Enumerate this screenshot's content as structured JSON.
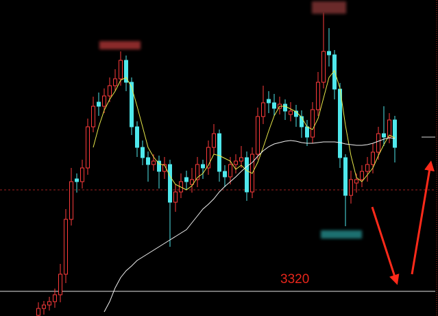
{
  "chart_data": {
    "type": "candlestick",
    "ylim": [
      3302,
      3532.5
    ],
    "open": [
      3302.5,
      3307.5,
      3310,
      3312.5,
      3317.5,
      3332.5,
      3372.5,
      3402,
      3400,
      3410,
      3440,
      3458,
      3455,
      3462.5,
      3470,
      3475,
      3488.5,
      3472.5,
      3440,
      3425,
      3417.5,
      3412.5,
      3415,
      3407.5,
      3412.5,
      3385,
      3392.5,
      3403,
      3398,
      3401.5,
      3412.5,
      3410,
      3425,
      3435,
      3407.5,
      3403.5,
      3412.5,
      3415,
      3417.5,
      3392.5,
      3420,
      3447.5,
      3460,
      3457.5,
      3453.5,
      3456.5,
      3449,
      3451.5,
      3447.5,
      3440,
      3432.5,
      3452.5,
      3472.5,
      3495,
      3492.5,
      3467.5,
      3417.5,
      3390,
      3399,
      3401.5,
      3407.5,
      3412.5,
      3421.5,
      3435,
      3432.5,
      3445
    ],
    "high": [
      3312,
      3313,
      3316,
      3322,
      3340,
      3380,
      3410,
      3406,
      3416,
      3446,
      3462,
      3465,
      3468,
      3476,
      3482,
      3495,
      3492,
      3476,
      3444,
      3430,
      3422,
      3420,
      3419,
      3418,
      3416,
      3398,
      3406,
      3408,
      3410,
      3418,
      3416,
      3430,
      3442,
      3438,
      3412,
      3418,
      3420,
      3426,
      3422,
      3425,
      3454,
      3470,
      3466,
      3464,
      3462,
      3460,
      3458,
      3456,
      3452,
      3445,
      3458,
      3480,
      3523.5,
      3512,
      3496,
      3472,
      3420,
      3408,
      3406,
      3412,
      3418,
      3428,
      3440,
      3455,
      3450,
      3448
    ],
    "low": [
      3300,
      3303,
      3306,
      3308,
      3312,
      3326,
      3368,
      3392,
      3395,
      3405,
      3436,
      3448,
      3450,
      3458,
      3466,
      3470,
      3466,
      3434,
      3418,
      3412,
      3400,
      3408,
      3395,
      3402,
      3352.5,
      3378,
      3388,
      3394,
      3392,
      3396,
      3402,
      3405,
      3420,
      3400,
      3396,
      3398,
      3406,
      3410,
      3386,
      3388,
      3416,
      3442,
      3450,
      3448,
      3449,
      3445,
      3444,
      3440,
      3432,
      3426,
      3428,
      3448,
      3468,
      3484,
      3460,
      3410,
      3367.5,
      3384,
      3392,
      3396,
      3400,
      3406,
      3416,
      3426,
      3428,
      3414
    ],
    "close": [
      3307.5,
      3310,
      3312.5,
      3317.5,
      3332.5,
      3372.5,
      3400,
      3400,
      3410,
      3440,
      3455,
      3455,
      3462.5,
      3470,
      3475,
      3488.5,
      3472.5,
      3440,
      3425,
      3417.5,
      3412.5,
      3415,
      3407.5,
      3412.5,
      3385,
      3392.5,
      3400,
      3400,
      3401.5,
      3412.5,
      3410,
      3425,
      3435,
      3407.5,
      3403.5,
      3412.5,
      3415,
      3417.5,
      3392.5,
      3420,
      3447.5,
      3457.5,
      3457.5,
      3453.5,
      3456.5,
      3451.5,
      3451.5,
      3447.5,
      3440,
      3432.5,
      3452.5,
      3472.5,
      3495,
      3492.5,
      3467.5,
      3417.5,
      3390,
      3401.5,
      3401.5,
      3407.5,
      3412.5,
      3421.5,
      3435,
      3432.5,
      3445,
      3425
    ],
    "up_color": "#ff3b3b",
    "down_color": "#4fe8ec",
    "ma_lines": [
      {
        "color": "#e8e84a",
        "values": [
          null,
          null,
          null,
          null,
          null,
          null,
          null,
          null,
          null,
          null,
          3425,
          3440,
          3452,
          3460,
          3466,
          3474,
          3476,
          3469,
          3455,
          3440,
          3425,
          3418,
          3413,
          3412,
          3404,
          3398,
          3396,
          3394,
          3397,
          3403,
          3406,
          3412,
          3420,
          3419,
          3417,
          3415,
          3409,
          3412,
          3408,
          3406,
          3414,
          3425,
          3437,
          3448,
          3455,
          3455,
          3453,
          3451,
          3447,
          3440,
          3438,
          3446,
          3461,
          3476,
          3481,
          3468,
          3441,
          3419,
          3403,
          3400,
          3405,
          3410,
          3419,
          3427,
          3434,
          3432
        ]
      },
      {
        "color": "#f2f2f2",
        "values": [
          null,
          null,
          null,
          null,
          null,
          null,
          null,
          null,
          null,
          null,
          null,
          null,
          3305,
          3312.5,
          3322.5,
          3330,
          3335,
          3338.5,
          3342.5,
          3345,
          3347.5,
          3350,
          3352.5,
          3355,
          3357.5,
          3360,
          3362.5,
          3365,
          3370,
          3375,
          3380,
          3383.5,
          3387.5,
          3392.5,
          3396.5,
          3400,
          3403.5,
          3407.5,
          3411,
          3414,
          3418.5,
          3422.5,
          3425.5,
          3427.5,
          3428.5,
          3429.5,
          3430,
          3429.5,
          3428.5,
          3428,
          3428,
          3428.5,
          3429,
          3429,
          3429,
          3428.5,
          3427.5,
          3427,
          3426.5,
          3426.5,
          3427,
          3428,
          3429.5,
          3431,
          3432,
          3431.5
        ]
      }
    ],
    "dashed_line": 3394,
    "reference_line": 3320,
    "reference_color": "#e8261b"
  }
}
